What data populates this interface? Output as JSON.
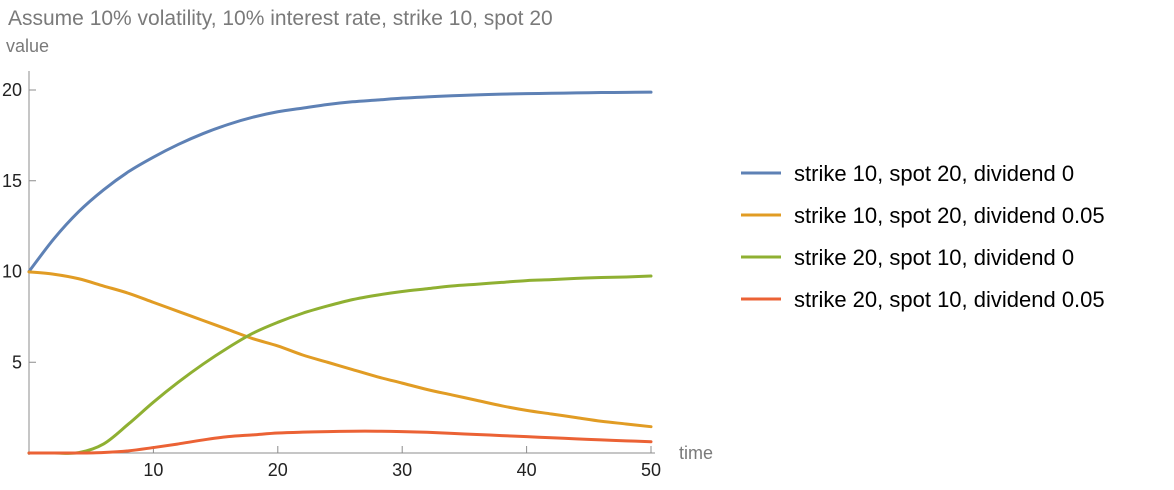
{
  "chart_data": {
    "type": "line",
    "title": "Assume 10% volatility, 10% interest rate, strike 10, spot 20",
    "xlabel": "time",
    "ylabel": "value",
    "xlim": [
      0,
      50
    ],
    "ylim": [
      0,
      21
    ],
    "x_ticks": [
      10,
      20,
      30,
      40,
      50
    ],
    "y_ticks": [
      5,
      10,
      15,
      20
    ],
    "grid": false,
    "legend_position": "right",
    "x": [
      0,
      2,
      4,
      6,
      8,
      10,
      12,
      14,
      16,
      18,
      20,
      22,
      24,
      26,
      28,
      30,
      32,
      34,
      36,
      38,
      40,
      42,
      44,
      46,
      48,
      50
    ],
    "series": [
      {
        "name": "strike 10, spot 20, dividend 0",
        "color": "#5e81b5",
        "values": [
          10.0,
          11.8,
          13.3,
          14.5,
          15.5,
          16.3,
          17.0,
          17.6,
          18.1,
          18.5,
          18.8,
          19.0,
          19.2,
          19.35,
          19.45,
          19.55,
          19.62,
          19.68,
          19.73,
          19.77,
          19.8,
          19.82,
          19.84,
          19.86,
          19.87,
          19.88
        ]
      },
      {
        "name": "strike 10, spot 20, dividend 0.05",
        "color": "#e19c24",
        "values": [
          9.98,
          9.85,
          9.6,
          9.2,
          8.8,
          8.3,
          7.8,
          7.3,
          6.8,
          6.3,
          5.9,
          5.4,
          5.0,
          4.6,
          4.2,
          3.85,
          3.5,
          3.2,
          2.9,
          2.6,
          2.35,
          2.15,
          1.95,
          1.75,
          1.6,
          1.45
        ]
      },
      {
        "name": "strike 20, spot 10, dividend 0",
        "color": "#8fb032",
        "values": [
          0.0,
          0.0,
          0.02,
          0.5,
          1.6,
          2.8,
          3.9,
          4.9,
          5.8,
          6.6,
          7.2,
          7.7,
          8.1,
          8.45,
          8.7,
          8.9,
          9.05,
          9.2,
          9.3,
          9.4,
          9.5,
          9.55,
          9.62,
          9.67,
          9.7,
          9.75
        ]
      },
      {
        "name": "strike 20, spot 10, dividend 0.05",
        "color": "#eb6235",
        "values": [
          0.0,
          0.0,
          0.0,
          0.03,
          0.12,
          0.3,
          0.5,
          0.72,
          0.9,
          1.0,
          1.1,
          1.15,
          1.18,
          1.2,
          1.2,
          1.18,
          1.14,
          1.08,
          1.02,
          0.96,
          0.9,
          0.84,
          0.78,
          0.72,
          0.67,
          0.62
        ]
      }
    ]
  }
}
